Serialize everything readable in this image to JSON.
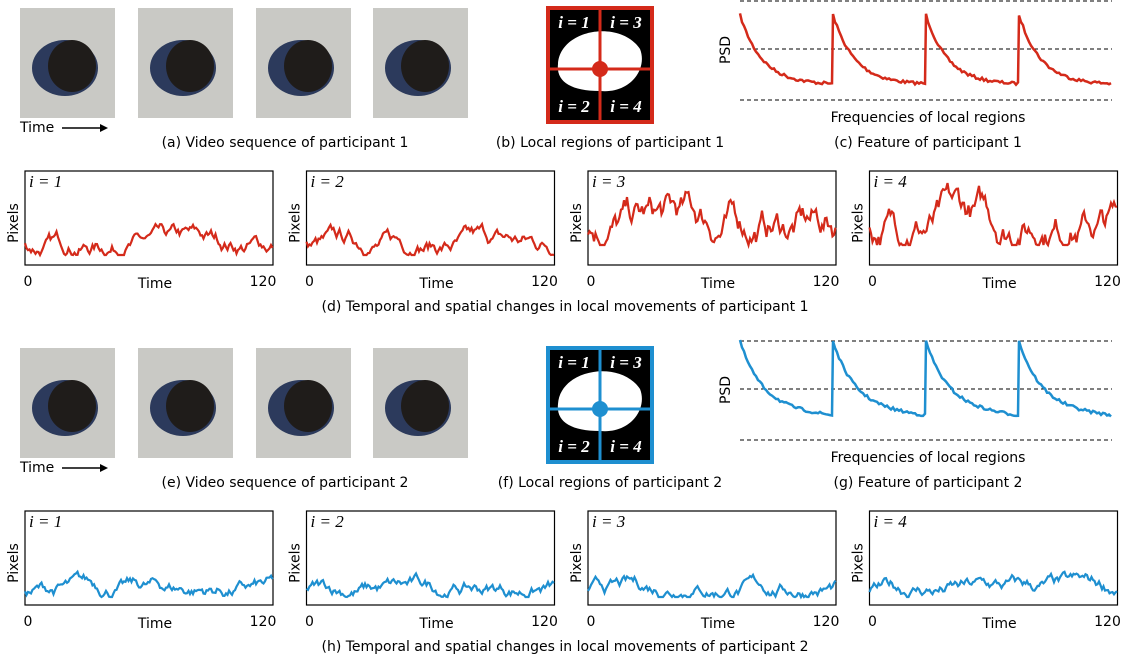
{
  "participants": [
    {
      "color": "#d42a1a",
      "video": {
        "caption": "(a) Video sequence of participant 1",
        "time_label": "Time"
      },
      "regions": {
        "caption": "(b) Local regions of participant 1",
        "labels": [
          "i = 1",
          "i = 3",
          "i = 2",
          "i = 4"
        ]
      },
      "feature": {
        "caption": "(c) Feature of participant 1",
        "y_label": "PSD",
        "x_label": "Frequencies of local regions"
      },
      "changes": {
        "caption": "(d) Temporal and spatial changes in local movements of participant 1",
        "panels": [
          {
            "label": "i = 1",
            "y_label": "Pixels",
            "x_label": "Time",
            "x_start": "0",
            "x_end": "120"
          },
          {
            "label": "i = 2",
            "y_label": "Pixels",
            "x_label": "Time",
            "x_start": "0",
            "x_end": "120"
          },
          {
            "label": "i = 3",
            "y_label": "Pixels",
            "x_label": "Time",
            "x_start": "0",
            "x_end": "120"
          },
          {
            "label": "i = 4",
            "y_label": "Pixels",
            "x_label": "Time",
            "x_start": "0",
            "x_end": "120"
          }
        ]
      }
    },
    {
      "color": "#1e8fd0",
      "video": {
        "caption": "(e) Video sequence of participant 2",
        "time_label": "Time"
      },
      "regions": {
        "caption": "(f) Local regions of participant 2",
        "labels": [
          "i = 1",
          "i = 3",
          "i = 2",
          "i = 4"
        ]
      },
      "feature": {
        "caption": "(g) Feature of participant 2",
        "y_label": "PSD",
        "x_label": "Frequencies of local regions"
      },
      "changes": {
        "caption": "(h) Temporal and spatial changes in local movements of participant 2",
        "panels": [
          {
            "label": "i = 1",
            "y_label": "Pixels",
            "x_label": "Time",
            "x_start": "0",
            "x_end": "120"
          },
          {
            "label": "i = 2",
            "y_label": "Pixels",
            "x_label": "Time",
            "x_start": "0",
            "x_end": "120"
          },
          {
            "label": "i = 3",
            "y_label": "Pixels",
            "x_label": "Time",
            "x_start": "0",
            "x_end": "120"
          },
          {
            "label": "i = 4",
            "y_label": "Pixels",
            "x_label": "Time",
            "x_start": "0",
            "x_end": "120"
          }
        ]
      }
    }
  ]
}
